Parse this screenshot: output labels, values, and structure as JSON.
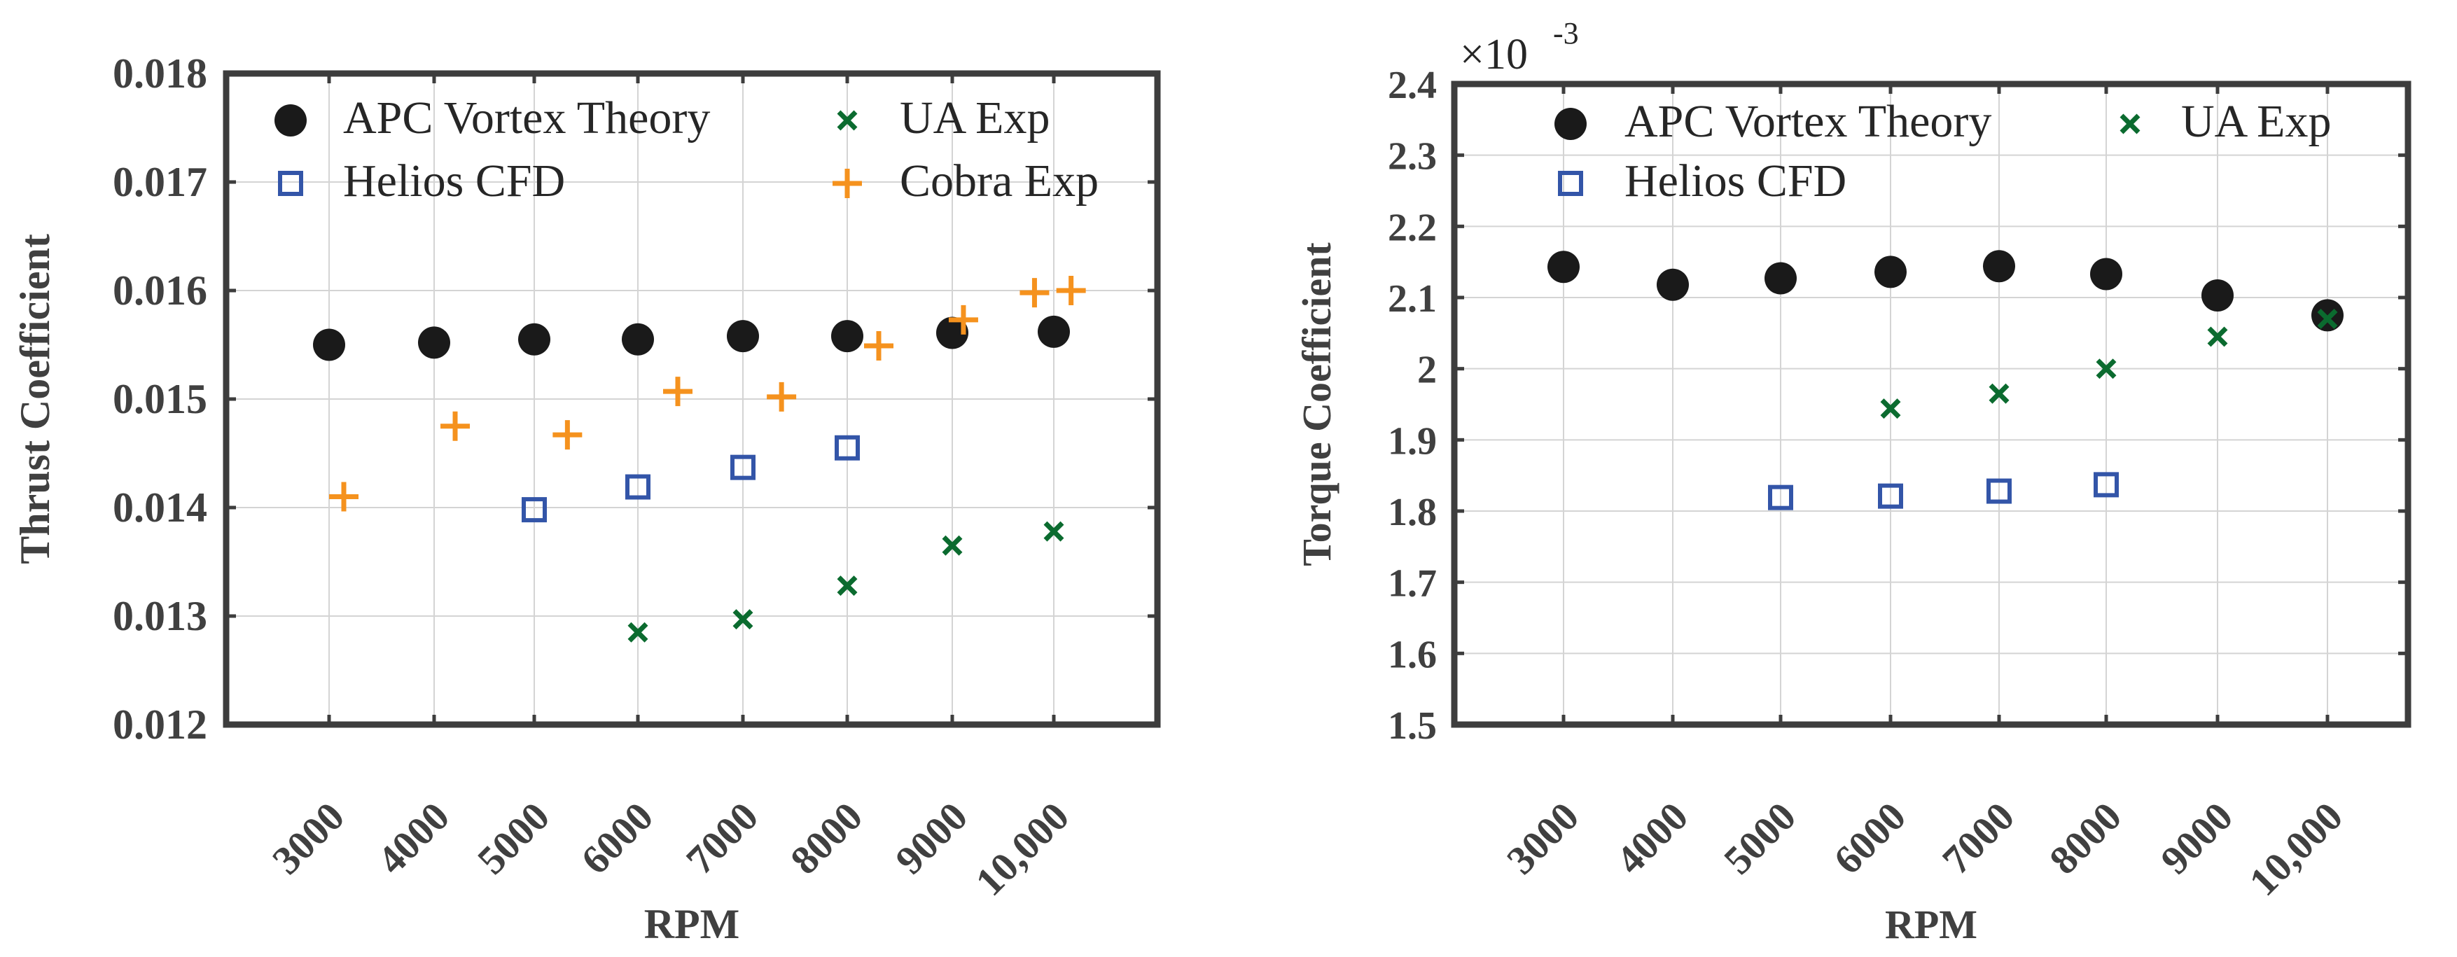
{
  "chart_data": [
    {
      "type": "scatter",
      "xlabel": "RPM",
      "ylabel": "Thrust Coefficient",
      "categories": [
        "3000",
        "4000",
        "5000",
        "6000",
        "7000",
        "8000",
        "9000",
        "10,000"
      ],
      "ylim": [
        0.012,
        0.018
      ],
      "yticks": [
        "0.012",
        "0.013",
        "0.014",
        "0.015",
        "0.016",
        "0.017",
        "0.018"
      ],
      "grid": true,
      "legend_position": "top",
      "legend": [
        "APC Vortex Theory",
        "UA Exp",
        "Helios CFD",
        "Cobra Exp"
      ],
      "series": [
        {
          "name": "APC Vortex Theory",
          "marker": "circle",
          "color": "#1a1a1a",
          "x": [
            3000,
            4000,
            5000,
            6000,
            7000,
            8000,
            9000,
            10000
          ],
          "y": [
            0.0155,
            0.01552,
            0.01555,
            0.01555,
            0.01558,
            0.01558,
            0.01561,
            0.01562
          ]
        },
        {
          "name": "UA Exp",
          "marker": "x",
          "color": "#0b6b2f",
          "x": [
            6000,
            7000,
            8000,
            9000,
            10000
          ],
          "y": [
            0.01285,
            0.01297,
            0.01328,
            0.01365,
            0.01378
          ]
        },
        {
          "name": "Helios CFD",
          "marker": "square",
          "color": "#3355a8",
          "x": [
            5000,
            6000,
            7000,
            8000
          ],
          "y": [
            0.01398,
            0.01419,
            0.01437,
            0.01455
          ]
        },
        {
          "name": "Cobra Exp",
          "marker": "plus",
          "color": "#f5921e",
          "x": [
            3140,
            4210,
            5320,
            6380,
            7370,
            8300,
            9110,
            9810,
            10170
          ],
          "y": [
            0.0141,
            0.01475,
            0.01467,
            0.01507,
            0.01502,
            0.01549,
            0.01573,
            0.01598,
            0.016
          ]
        }
      ]
    },
    {
      "type": "scatter",
      "xlabel": "RPM",
      "ylabel": "Torque Coefficient",
      "categories": [
        "3000",
        "4000",
        "5000",
        "6000",
        "7000",
        "8000",
        "9000",
        "10,000"
      ],
      "ylim": [
        1.5,
        2.4
      ],
      "yticks": [
        "1.5",
        "1.6",
        "1.7",
        "1.8",
        "1.9",
        "2",
        "2.1",
        "2.2",
        "2.3",
        "2.4"
      ],
      "y_exponent_base": "×10",
      "y_exponent_power": "-3",
      "grid": true,
      "legend_position": "top",
      "legend": [
        "APC Vortex Theory",
        "UA Exp",
        "Helios CFD"
      ],
      "series": [
        {
          "name": "APC Vortex Theory",
          "marker": "circle",
          "color": "#1a1a1a",
          "x": [
            3000,
            4000,
            5000,
            6000,
            7000,
            8000,
            9000,
            10000
          ],
          "y": [
            2.143,
            2.118,
            2.127,
            2.136,
            2.144,
            2.133,
            2.103,
            2.075
          ]
        },
        {
          "name": "UA Exp",
          "marker": "x",
          "color": "#0b6b2f",
          "x": [
            6000,
            7000,
            8000,
            9000,
            10000
          ],
          "y": [
            1.944,
            1.965,
            2.0,
            2.045,
            2.07
          ]
        },
        {
          "name": "Helios CFD",
          "marker": "square",
          "color": "#3355a8",
          "x": [
            5000,
            6000,
            7000,
            8000
          ],
          "y": [
            1.819,
            1.821,
            1.828,
            1.837
          ]
        }
      ]
    }
  ]
}
